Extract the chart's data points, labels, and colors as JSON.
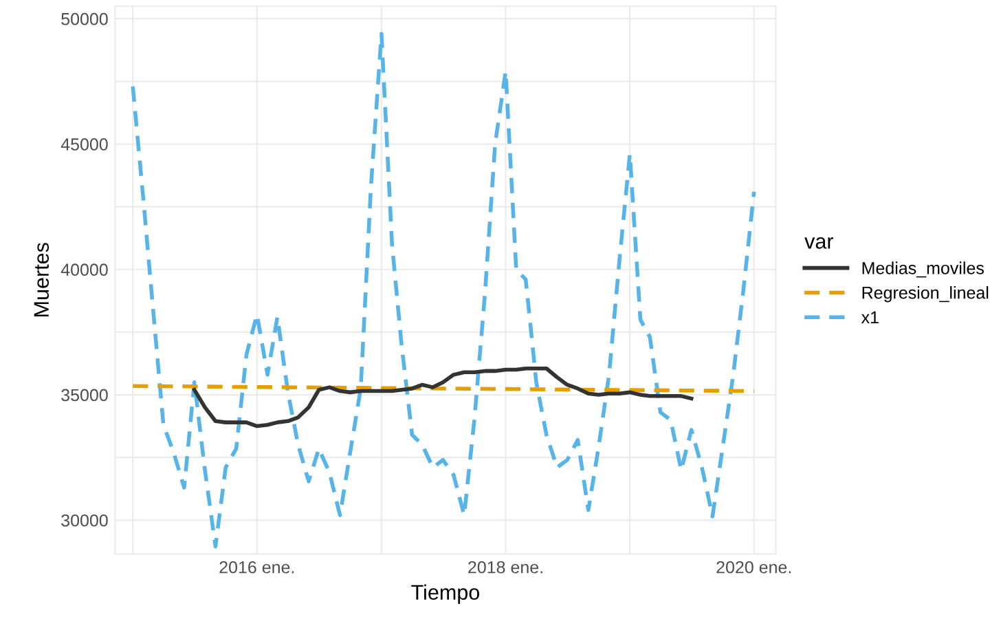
{
  "chart_data": {
    "type": "line",
    "xlabel": "Tiempo",
    "ylabel": "Muertes",
    "legend_title": "var",
    "legend": "right",
    "grid": true,
    "xlim": [
      "2014-11-10",
      "2020-03-05"
    ],
    "ylim": [
      28650,
      50500
    ],
    "xticks": [
      {
        "value": "2015-01",
        "label": null
      },
      {
        "value": "2016-01",
        "label": "2016 ene."
      },
      {
        "value": "2017-01",
        "label": null
      },
      {
        "value": "2018-01",
        "label": "2018 ene."
      },
      {
        "value": "2019-01",
        "label": null
      },
      {
        "value": "2020-01",
        "label": "2020 ene."
      }
    ],
    "yticks": [
      30000,
      {
        "value": 32500,
        "label": null
      },
      35000,
      {
        "value": 37500,
        "label": null
      },
      40000,
      {
        "value": 42500,
        "label": null
      },
      45000,
      {
        "value": 47500,
        "label": null
      },
      50000
    ],
    "series": [
      {
        "name": "Medias_moviles",
        "color": "#333333",
        "line_style": "solid",
        "x": [
          "2015-07",
          "2015-08",
          "2015-09",
          "2015-10",
          "2015-11",
          "2015-12",
          "2016-01",
          "2016-02",
          "2016-03",
          "2016-04",
          "2016-05",
          "2016-06",
          "2016-07",
          "2016-08",
          "2016-09",
          "2016-10",
          "2016-11",
          "2016-12",
          "2017-01",
          "2017-02",
          "2017-03",
          "2017-04",
          "2017-05",
          "2017-06",
          "2017-07",
          "2017-08",
          "2017-09",
          "2017-10",
          "2017-11",
          "2017-12",
          "2018-01",
          "2018-02",
          "2018-03",
          "2018-04",
          "2018-05",
          "2018-06",
          "2018-07",
          "2018-08",
          "2018-09",
          "2018-10",
          "2018-11",
          "2018-12",
          "2019-01",
          "2019-02",
          "2019-03",
          "2019-04",
          "2019-05",
          "2019-06",
          "2019-07"
        ],
        "values": [
          35200,
          34500,
          33950,
          33900,
          33900,
          33900,
          33750,
          33800,
          33900,
          33950,
          34100,
          34500,
          35200,
          35300,
          35150,
          35100,
          35150,
          35150,
          35150,
          35150,
          35200,
          35250,
          35400,
          35300,
          35500,
          35800,
          35900,
          35900,
          35950,
          35950,
          36000,
          36000,
          36050,
          36050,
          36050,
          35700,
          35400,
          35250,
          35050,
          35000,
          35050,
          35050,
          35100,
          35000,
          34950,
          34950,
          34950,
          34950,
          34850
        ]
      },
      {
        "name": "Regresion_lineal",
        "color": "#e69f00",
        "line_style": "dashed",
        "x": [
          "2015-01",
          "2020-01"
        ],
        "values": [
          35350,
          35150
        ]
      },
      {
        "name": "x1",
        "color": "#56b4e9",
        "line_style": "dashed",
        "x": [
          "2015-01",
          "2015-02",
          "2015-03",
          "2015-04",
          "2015-05",
          "2015-06",
          "2015-07",
          "2015-08",
          "2015-09",
          "2015-10",
          "2015-11",
          "2015-12",
          "2016-01",
          "2016-02",
          "2016-03",
          "2016-04",
          "2016-05",
          "2016-06",
          "2016-07",
          "2016-08",
          "2016-09",
          "2016-10",
          "2016-11",
          "2016-12",
          "2017-01",
          "2017-02",
          "2017-03",
          "2017-04",
          "2017-05",
          "2017-06",
          "2017-07",
          "2017-08",
          "2017-09",
          "2017-10",
          "2017-11",
          "2017-12",
          "2018-01",
          "2018-02",
          "2018-03",
          "2018-04",
          "2018-05",
          "2018-06",
          "2018-07",
          "2018-08",
          "2018-09",
          "2018-10",
          "2018-11",
          "2018-12",
          "2019-01",
          "2019-02",
          "2019-03",
          "2019-04",
          "2019-05",
          "2019-06",
          "2019-07",
          "2019-08",
          "2019-09",
          "2019-10",
          "2019-11",
          "2019-12",
          "2020-01"
        ],
        "values": [
          47300,
          42800,
          38500,
          33800,
          32700,
          31300,
          35500,
          32000,
          28950,
          32100,
          32850,
          36600,
          38200,
          35800,
          38100,
          35100,
          33000,
          31550,
          32850,
          31900,
          30200,
          32700,
          35250,
          43300,
          49400,
          41000,
          37000,
          33400,
          33000,
          32100,
          32400,
          31800,
          30200,
          34000,
          39000,
          45000,
          47900,
          40000,
          39600,
          35500,
          33400,
          32100,
          32400,
          33200,
          30400,
          32900,
          35800,
          40300,
          44600,
          38000,
          37300,
          34300,
          34000,
          32000,
          33600,
          32100,
          30150,
          32900,
          35800,
          39200,
          43100
        ]
      }
    ]
  }
}
